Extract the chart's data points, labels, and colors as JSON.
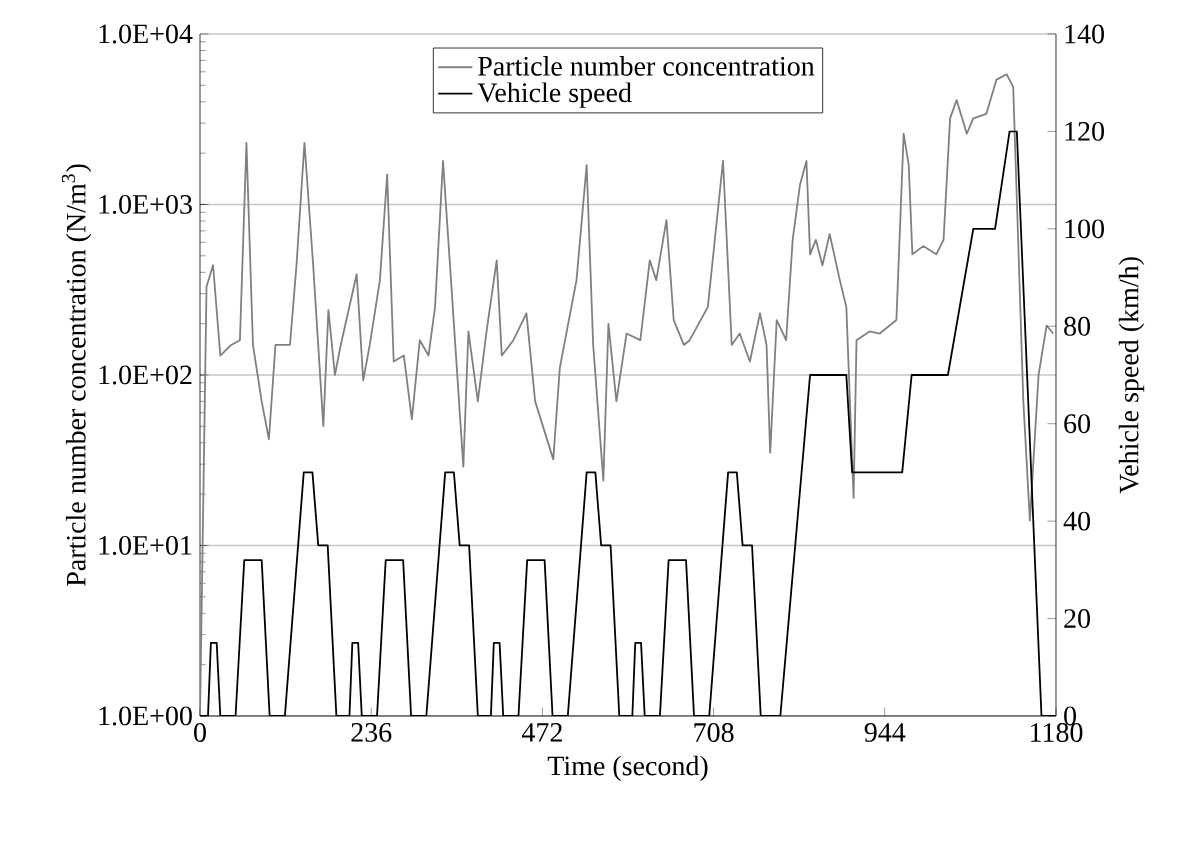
{
  "chart_data": {
    "type": "line",
    "xlabel": "Time (second)",
    "ylabel": "Particle number concentration (N/m$^{3}$)",
    "y2label": "Vehicle speed (km/h)",
    "xlim": [
      0,
      1180
    ],
    "xticks": [
      0,
      236,
      472,
      708,
      944,
      1180
    ],
    "ylim": [
      1,
      10000
    ],
    "yticks": [
      {
        "value": 1,
        "label": "1.0E+00"
      },
      {
        "value": 10,
        "label": "1.0E+01"
      },
      {
        "value": 100,
        "label": "1.0E+02"
      },
      {
        "value": 1000,
        "label": "1.0E+03"
      },
      {
        "value": 10000,
        "label": "1.0E+04"
      }
    ],
    "y2lim": [
      0,
      140
    ],
    "y2ticks": [
      0,
      20,
      40,
      60,
      80,
      100,
      120,
      140
    ],
    "log": "y",
    "grid": "y",
    "legend": "top",
    "series": [
      {
        "name": "Particle number concentration",
        "color": "#808080",
        "axis": "y",
        "x": [
          0,
          9,
          18,
          28,
          43,
          55,
          64,
          73,
          85,
          95,
          104,
          124,
          133,
          144,
          156,
          170,
          177,
          186,
          194,
          216,
          225,
          234,
          248,
          258,
          267,
          281,
          292,
          303,
          315,
          324,
          335,
          346,
          363,
          370,
          383,
          395,
          409,
          416,
          432,
          450,
          462,
          487,
          496,
          519,
          533,
          542,
          556,
          563,
          574,
          588,
          607,
          620,
          629,
          643,
          653,
          667,
          675,
          700,
          721,
          733,
          744,
          758,
          772,
          781,
          786,
          795,
          808,
          817,
          827,
          836,
          841,
          849,
          858,
          868,
          882,
          891,
          901,
          905,
          923,
          937,
          960,
          970,
          977,
          982,
          997,
          1015,
          1025,
          1034,
          1043,
          1057,
          1066,
          1084,
          1098,
          1112,
          1121,
          1135,
          1144,
          1156,
          1167,
          1176
        ],
        "values": [
          1,
          330,
          440,
          130,
          150,
          160,
          2300,
          150,
          70,
          42,
          150,
          150,
          440,
          2300,
          440,
          50,
          240,
          100,
          150,
          390,
          93,
          150,
          360,
          1500,
          120,
          130,
          55,
          160,
          130,
          250,
          1800,
          360,
          29,
          180,
          70,
          180,
          470,
          130,
          160,
          230,
          70,
          32,
          110,
          360,
          1700,
          150,
          24,
          200,
          70,
          175,
          160,
          470,
          360,
          810,
          210,
          150,
          160,
          250,
          1800,
          150,
          175,
          120,
          230,
          150,
          35,
          210,
          160,
          620,
          1300,
          1800,
          510,
          620,
          440,
          670,
          360,
          250,
          19,
          160,
          180,
          175,
          210,
          2600,
          1700,
          510,
          570,
          510,
          620,
          3200,
          4100,
          2600,
          3200,
          3400,
          5400,
          5800,
          4900,
          70,
          14,
          100,
          195,
          175
        ]
      },
      {
        "name": "Vehicle speed",
        "color": "#000000",
        "axis": "y2",
        "x": [
          0,
          11,
          15,
          23,
          28,
          49,
          61,
          85,
          96,
          117,
          143,
          155,
          163,
          176,
          188,
          206,
          210,
          218,
          223,
          244,
          256,
          280,
          291,
          312,
          338,
          350,
          358,
          371,
          383,
          401,
          405,
          413,
          418,
          439,
          451,
          475,
          486,
          507,
          533,
          545,
          553,
          566,
          578,
          596,
          600,
          608,
          613,
          634,
          646,
          670,
          681,
          702,
          728,
          740,
          748,
          761,
          773,
          800,
          841,
          891,
          899,
          968,
          981,
          1031,
          1066,
          1096,
          1116,
          1126,
          1160,
          1180
        ],
        "values": [
          0,
          0,
          15,
          15,
          0,
          0,
          32,
          32,
          0,
          0,
          50,
          50,
          35,
          35,
          0,
          0,
          15,
          15,
          0,
          0,
          32,
          32,
          0,
          0,
          50,
          50,
          35,
          35,
          0,
          0,
          15,
          15,
          0,
          0,
          32,
          32,
          0,
          0,
          50,
          50,
          35,
          35,
          0,
          0,
          15,
          15,
          0,
          0,
          32,
          32,
          0,
          0,
          50,
          50,
          35,
          35,
          0,
          0,
          70,
          70,
          50,
          50,
          70,
          70,
          100,
          100,
          120,
          120,
          0,
          0
        ]
      }
    ]
  }
}
